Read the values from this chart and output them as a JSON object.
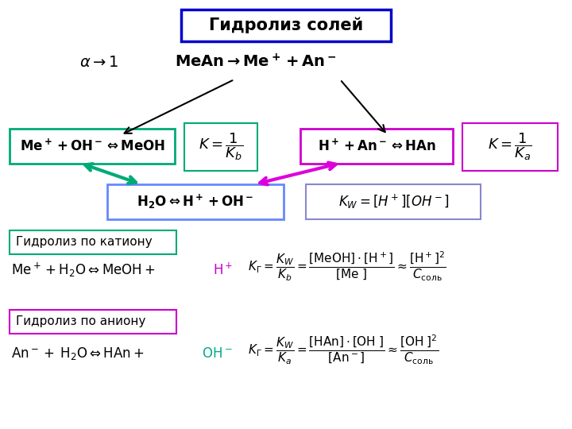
{
  "title": "Гидролиз солей",
  "bg_color": "#ffffff",
  "title_edge": "#0000cc",
  "green_edge": "#00aa77",
  "magenta_edge": "#cc00cc",
  "blue_edge": "#6688ff",
  "purple_edge": "#8888cc",
  "green_arrow": "#00aa77",
  "magenta_arrow": "#dd00dd",
  "pink_text": "#cc00cc",
  "teal_text": "#00aa88"
}
